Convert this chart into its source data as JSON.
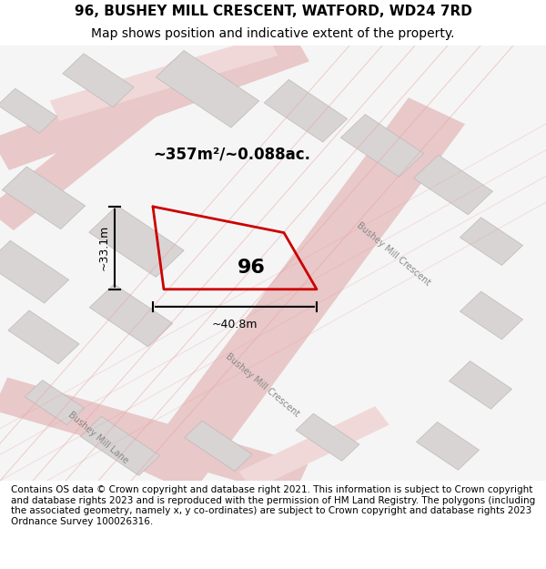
{
  "title": "96, BUSHEY MILL CRESCENT, WATFORD, WD24 7RD",
  "subtitle": "Map shows position and indicative extent of the property.",
  "footer": "Contains OS data © Crown copyright and database right 2021. This information is subject to Crown copyright and database rights 2023 and is reproduced with the permission of HM Land Registry. The polygons (including the associated geometry, namely x, y co-ordinates) are subject to Crown copyright and database rights 2023 Ordnance Survey 100026316.",
  "bg_color": "#f5f5f5",
  "map_bg": "#f0eeee",
  "plot_color": "#cc0000",
  "plot_fill": "none",
  "property_label": "96",
  "area_label": "~357m²/~0.088ac.",
  "width_label": "~40.8m",
  "height_label": "~33.1m",
  "road_color_main": "#e8c8c8",
  "road_color_light": "#f0d8d8",
  "building_color": "#d8d4d4",
  "building_edge": "#c0b8b8",
  "street_label_1": "Bushey Mill Crescent",
  "street_label_2": "Bushey Mill Crescent",
  "street_label_3": "Bushey Mill Lane",
  "title_fontsize": 11,
  "subtitle_fontsize": 10,
  "footer_fontsize": 7.5
}
